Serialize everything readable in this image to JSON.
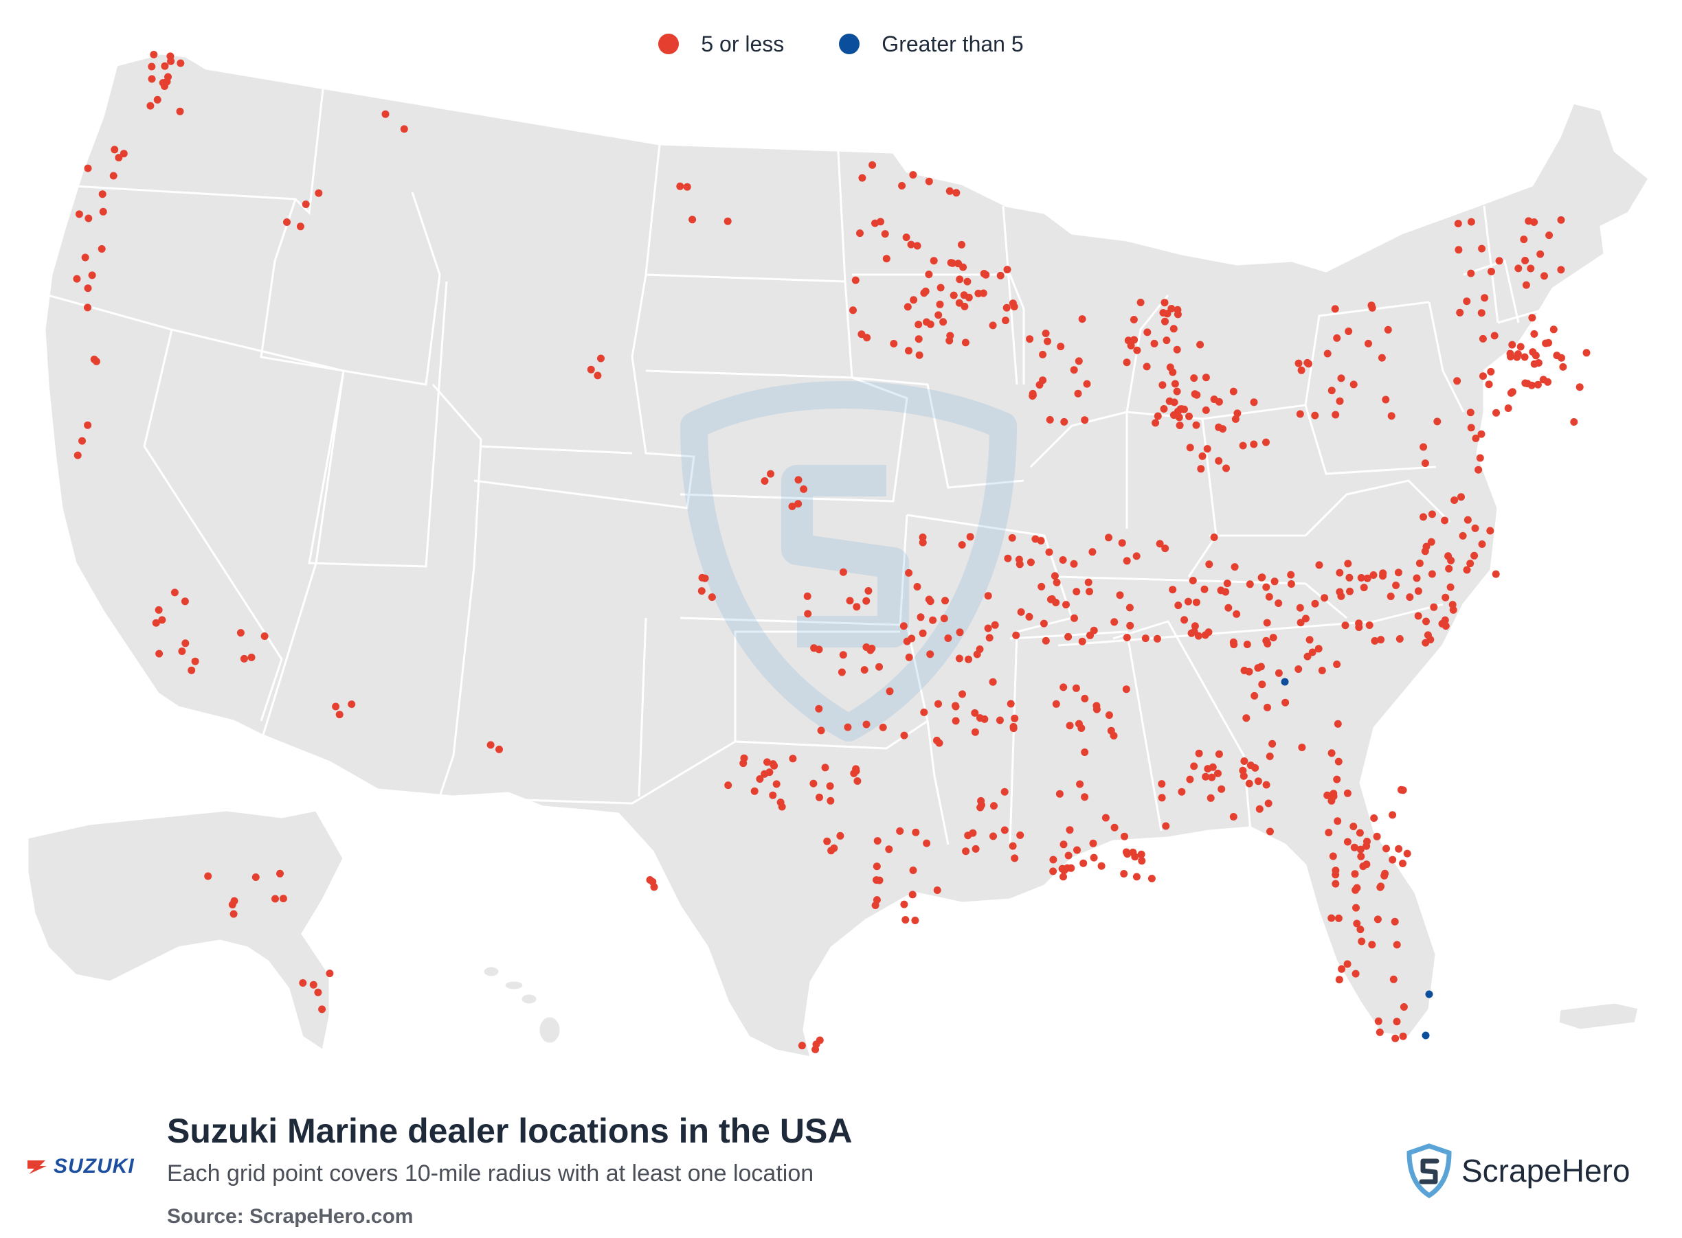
{
  "legend": {
    "items": [
      {
        "label": "5 or less",
        "color": "#e5402f"
      },
      {
        "label": "Greater than 5",
        "color": "#0b4f9c"
      }
    ]
  },
  "title": "Suzuki Marine dealer locations in the USA",
  "subtitle": "Each grid point covers 10-mile radius with at least one location",
  "source": "Source: ScrapeHero.com",
  "brand": {
    "name": "SUZUKI",
    "color": "#1c4fa0",
    "accent": "#e5402f"
  },
  "watermark": {
    "name": "ScrapeHero",
    "icon": "shield-s-icon",
    "color": "#5aa3d6"
  },
  "map": {
    "land_color": "#e6e6e6",
    "border_color": "#ffffff"
  }
}
